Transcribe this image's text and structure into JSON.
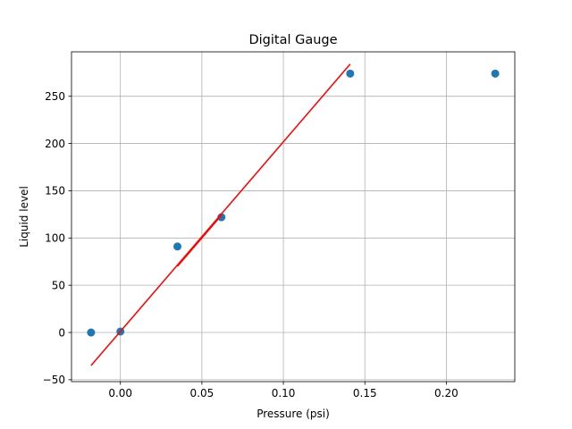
{
  "chart_data": {
    "type": "scatter",
    "title": "Digital Gauge",
    "xlabel": "Pressure (psi)",
    "ylabel": "Liquid level",
    "xlim": [
      -0.03,
      0.242
    ],
    "ylim": [
      -52,
      297
    ],
    "xticks": [
      0.0,
      0.05,
      0.1,
      0.15,
      0.2
    ],
    "xtick_labels": [
      "0.00",
      "0.05",
      "0.10",
      "0.15",
      "0.20"
    ],
    "yticks": [
      -50,
      0,
      50,
      100,
      150,
      200,
      250
    ],
    "ytick_labels": [
      "−50",
      "0",
      "50",
      "100",
      "150",
      "200",
      "250"
    ],
    "grid": true,
    "series": [
      {
        "kind": "scatter",
        "color": "#1f77b4",
        "x": [
          -0.018,
          0.0,
          0.035,
          0.062,
          0.141,
          0.23
        ],
        "y": [
          0,
          1,
          91,
          122,
          274,
          274
        ]
      },
      {
        "kind": "line",
        "color": "#ff0000",
        "segments": [
          [
            [
              -0.018,
              -35
            ],
            [
              0.141,
              284
            ]
          ],
          [
            [
              0.035,
              70
            ],
            [
              0.062,
              124
            ]
          ]
        ]
      }
    ]
  }
}
